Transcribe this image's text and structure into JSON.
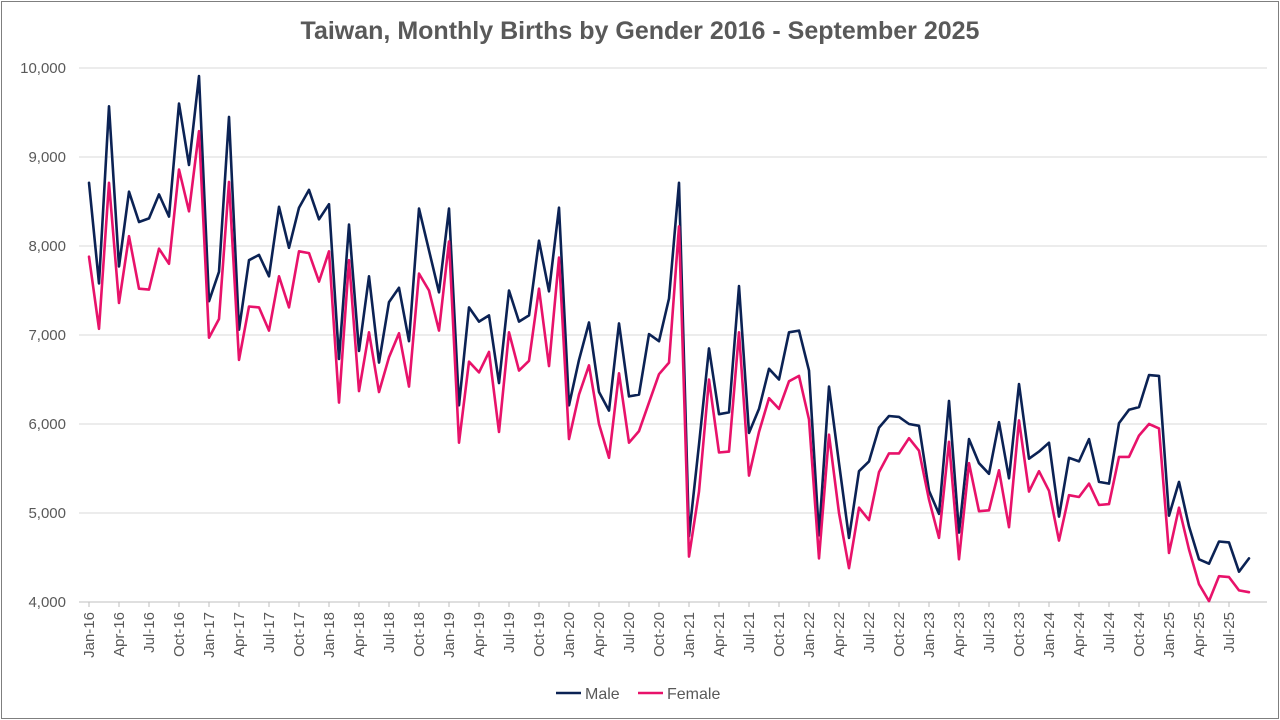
{
  "chart_data": {
    "type": "line",
    "title": "Taiwan, Monthly Births by Gender 2016 - September 2025",
    "xlabel": "",
    "ylabel": "",
    "ylim": [
      4000,
      10000
    ],
    "yticks": [
      "4,000",
      "5,000",
      "6,000",
      "7,000",
      "8,000",
      "9,000",
      "10,000"
    ],
    "grid": true,
    "legend": "bottom",
    "x_tick_labels": [
      "Jan-16",
      "Apr-16",
      "Jul-16",
      "Oct-16",
      "Jan-17",
      "Apr-17",
      "Jul-17",
      "Oct-17",
      "Jan-18",
      "Apr-18",
      "Jul-18",
      "Oct-18",
      "Jan-19",
      "Apr-19",
      "Jul-19",
      "Oct-19",
      "Jan-20",
      "Apr-20",
      "Jul-20",
      "Oct-20",
      "Jan-21",
      "Apr-21",
      "Jul-21",
      "Oct-21",
      "Jan-22",
      "Apr-22",
      "Jul-22",
      "Oct-22",
      "Jan-23",
      "Apr-23",
      "Jul-23",
      "Oct-23",
      "Jan-24",
      "Apr-24",
      "Jul-24",
      "Oct-24",
      "Jan-25",
      "Apr-25",
      "Jul-25"
    ],
    "series": [
      {
        "name": "Male",
        "color": "#0b2254",
        "values": [
          8710,
          7580,
          9570,
          7770,
          8610,
          8270,
          8310,
          8580,
          8330,
          9600,
          8910,
          9910,
          7380,
          7710,
          9450,
          7060,
          7840,
          7900,
          7660,
          8440,
          7980,
          8430,
          8630,
          8300,
          8470,
          6730,
          8240,
          6820,
          7660,
          6690,
          7370,
          7530,
          6930,
          8420,
          7950,
          7480,
          8420,
          6210,
          7310,
          7150,
          7220,
          6460,
          7500,
          7150,
          7220,
          8060,
          7490,
          8430,
          6210,
          6720,
          7140,
          6360,
          6150,
          7130,
          6310,
          6330,
          7010,
          6930,
          7410,
          8710,
          4740,
          5770,
          6850,
          6110,
          6130,
          7550,
          5900,
          6170,
          6620,
          6500,
          7030,
          7050,
          6600,
          4750,
          6420,
          5560,
          4720,
          5470,
          5580,
          5960,
          6090,
          6080,
          6000,
          5980,
          5250,
          4990,
          6260,
          4780,
          5830,
          5560,
          5440,
          6020,
          5390,
          6450,
          5610,
          5690,
          5790,
          4960,
          5620,
          5580,
          5830,
          5350,
          5330,
          6010,
          6160,
          6190,
          6550,
          6540,
          4970,
          5350,
          4850,
          4480,
          4430,
          4680,
          4670,
          4340,
          4490
        ]
      },
      {
        "name": "Female",
        "color": "#e8126a",
        "values": [
          7880,
          7070,
          8710,
          7360,
          8110,
          7520,
          7510,
          7970,
          7800,
          8860,
          8390,
          9290,
          6970,
          7180,
          8720,
          6720,
          7320,
          7310,
          7050,
          7660,
          7310,
          7940,
          7920,
          7600,
          7940,
          6240,
          7840,
          6370,
          7030,
          6360,
          6750,
          7020,
          6420,
          7690,
          7500,
          7050,
          8050,
          5790,
          6700,
          6580,
          6810,
          5910,
          7030,
          6600,
          6710,
          7520,
          6650,
          7870,
          5830,
          6330,
          6660,
          6000,
          5620,
          6570,
          5790,
          5920,
          6240,
          6560,
          6690,
          8220,
          4510,
          5240,
          6500,
          5680,
          5690,
          7030,
          5420,
          5910,
          6290,
          6170,
          6480,
          6540,
          6050,
          4490,
          5880,
          5000,
          4380,
          5060,
          4920,
          5460,
          5670,
          5670,
          5840,
          5700,
          5150,
          4720,
          5800,
          4480,
          5560,
          5020,
          5030,
          5480,
          4840,
          6040,
          5240,
          5470,
          5250,
          4690,
          5200,
          5180,
          5330,
          5090,
          5100,
          5630,
          5630,
          5870,
          6000,
          5950,
          4550,
          5060,
          4590,
          4200,
          4010,
          4290,
          4280,
          4130,
          4110
        ]
      }
    ]
  }
}
